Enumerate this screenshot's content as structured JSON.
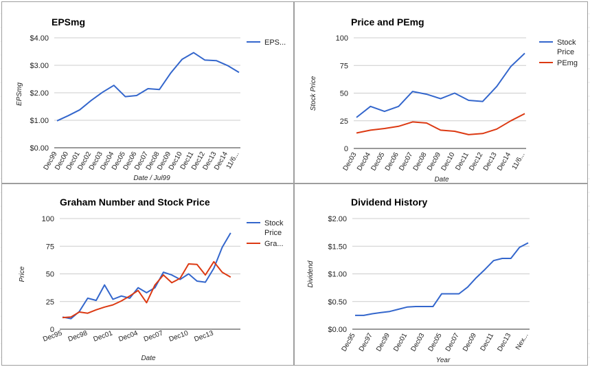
{
  "chart_data": [
    {
      "type": "line",
      "title": "EPSmg",
      "xlabel": "Date / Jul99",
      "ylabel": "EPSmg",
      "categories": [
        "Dec99",
        "Dec00",
        "Dec01",
        "Dec02",
        "Dec03",
        "Dec04",
        "Dec05",
        "Dec06",
        "Dec07",
        "Dec08",
        "Dec09",
        "Dec10",
        "Dec11",
        "Dec12",
        "Dec13",
        "Dec14",
        "11/6..."
      ],
      "series": [
        {
          "name": "EPS...",
          "color": "#3366cc",
          "values": [
            0.98,
            1.17,
            1.38,
            1.72,
            2.02,
            2.27,
            1.86,
            1.9,
            2.15,
            2.12,
            2.72,
            3.22,
            3.46,
            3.19,
            3.17,
            2.99,
            2.74
          ]
        }
      ],
      "y_ticks": [
        "$4.00",
        "$3.00",
        "$2.00",
        "$1.00",
        "$0.00"
      ],
      "ylim": [
        0,
        4
      ],
      "legend": "right",
      "grid": true
    },
    {
      "type": "line",
      "title": "Price and PEmg",
      "xlabel": "Date",
      "ylabel": "Stock Price",
      "categories": [
        "Dec03",
        "Dec04",
        "Dec05",
        "Dec06",
        "Dec07",
        "Dec08",
        "Dec09",
        "Dec10",
        "Dec11",
        "Dec12",
        "Dec13",
        "Dec14",
        "11/6..."
      ],
      "series": [
        {
          "name": "Stock Price",
          "color": "#3366cc",
          "values": [
            28,
            38,
            33.5,
            38,
            51.5,
            49,
            45,
            50,
            43.5,
            42.5,
            56,
            74,
            86
          ]
        },
        {
          "name": "PEmg",
          "color": "#dc3912",
          "values": [
            14,
            16.5,
            18,
            20,
            24,
            23,
            16.5,
            15.5,
            12.5,
            13.5,
            17.5,
            25,
            31.5
          ]
        }
      ],
      "y_ticks": [
        "100",
        "75",
        "50",
        "25",
        "0"
      ],
      "ylim": [
        0,
        100
      ],
      "legend": "right",
      "grid": true
    },
    {
      "type": "line",
      "title": "Graham Number and Stock Price",
      "xlabel": "Date",
      "ylabel": "Price",
      "categories": [
        "Dec95",
        "Dec96",
        "Dec97",
        "Dec98",
        "Dec99",
        "Dec00",
        "Dec01",
        "Dec02",
        "Dec03",
        "Dec04",
        "Dec05",
        "Dec06",
        "Dec07",
        "Dec08",
        "Dec09",
        "Dec10",
        "Dec11",
        "Dec12",
        "Dec13",
        "Dec14",
        "Dec15",
        "11/6..."
      ],
      "shown_tick_labels": [
        "Dec95",
        "Dec98",
        "Dec01",
        "Dec04",
        "Dec07",
        "Dec10",
        "Dec13"
      ],
      "series": [
        {
          "name": "Stock Price",
          "color": "#3366cc",
          "values": [
            11,
            9.5,
            16,
            28,
            26,
            40,
            27,
            30,
            28,
            37.5,
            33,
            37.5,
            51.5,
            49,
            45,
            50,
            43.5,
            42.5,
            55,
            74,
            87,
            null
          ]
        },
        {
          "name": "Gra...",
          "color": "#dc3912",
          "values": [
            10.5,
            11,
            15.5,
            14.5,
            17.5,
            20,
            22,
            25.5,
            30,
            35,
            24,
            40,
            49,
            42,
            46,
            59,
            58.5,
            49,
            61,
            51.5,
            47,
            null
          ]
        }
      ],
      "y_ticks": [
        "100",
        "75",
        "50",
        "25",
        "0"
      ],
      "ylim": [
        0,
        100
      ],
      "legend": "right",
      "grid": true
    },
    {
      "type": "line",
      "title": "Dividend History",
      "xlabel": "Year",
      "ylabel": "Dividend",
      "categories": [
        "Dec95",
        "Dec96",
        "Dec97",
        "Dec98",
        "Dec99",
        "Dec00",
        "Dec01",
        "Dec02",
        "Dec03",
        "Dec04",
        "Dec05",
        "Dec06",
        "Dec07",
        "Dec08",
        "Dec09",
        "Dec10",
        "Dec11",
        "Dec12",
        "Dec13",
        "Dec14",
        "Nex..."
      ],
      "shown_tick_labels": [
        "Dec95",
        "Dec97",
        "Dec99",
        "Dec01",
        "Dec03",
        "Dec05",
        "Dec07",
        "Dec09",
        "Dec11",
        "Dec13",
        "Nex..."
      ],
      "series": [
        {
          "name": "Dividend",
          "color": "#3366cc",
          "values": [
            0.25,
            0.25,
            0.28,
            0.3,
            0.32,
            0.36,
            0.4,
            0.41,
            0.41,
            0.41,
            0.64,
            0.64,
            0.64,
            0.76,
            0.93,
            1.08,
            1.24,
            1.28,
            1.28,
            1.48,
            1.56
          ]
        }
      ],
      "y_ticks": [
        "$2.00",
        "$1.50",
        "$1.00",
        "$0.50",
        "$0.00"
      ],
      "ylim": [
        0,
        2
      ],
      "legend": "none",
      "grid": true
    }
  ]
}
